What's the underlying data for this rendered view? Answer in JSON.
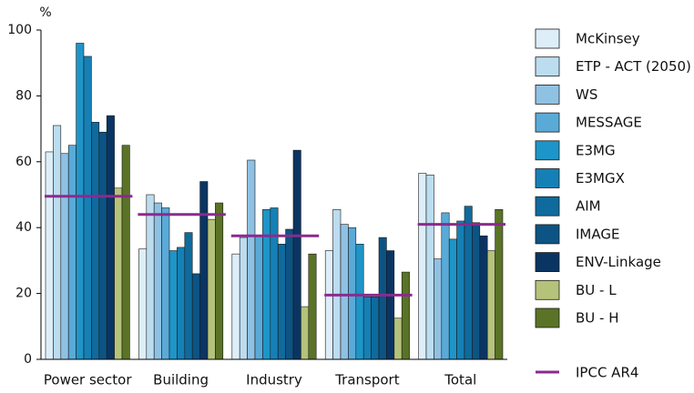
{
  "chart_data": {
    "type": "bar",
    "y_axis_label": "%",
    "categories": [
      "Power sector",
      "Building",
      "Industry",
      "Transport",
      "Total"
    ],
    "series": [
      {
        "name": "McKinsey",
        "color": "#ddeef8",
        "values": [
          63,
          33.5,
          32,
          33,
          56.5
        ]
      },
      {
        "name": "ETP - ACT (2050)",
        "color": "#bcdcf0",
        "values": [
          71,
          50,
          37,
          45.5,
          56
        ]
      },
      {
        "name": "WS",
        "color": "#8fc1e3",
        "values": [
          62.5,
          47.5,
          60.5,
          41,
          30.5
        ]
      },
      {
        "name": "MESSAGE",
        "color": "#5aaad8",
        "values": [
          65,
          46,
          37.5,
          40,
          44.5
        ]
      },
      {
        "name": "E3MG",
        "color": "#1e95c8",
        "values": [
          96,
          33,
          45.5,
          35,
          36.5
        ]
      },
      {
        "name": "E3MGX",
        "color": "#1580b5",
        "values": [
          92,
          34,
          46,
          19,
          42
        ]
      },
      {
        "name": "AIM",
        "color": "#0f6a9d",
        "values": [
          72,
          38.5,
          35,
          19,
          46.5
        ]
      },
      {
        "name": "IMAGE",
        "color": "#0c5484",
        "values": [
          69,
          26,
          39.5,
          37,
          41.5
        ]
      },
      {
        "name": "ENV-Linkage",
        "color": "#0a3563",
        "values": [
          74,
          54,
          63.5,
          33,
          37.5
        ]
      },
      {
        "name": "BU - L",
        "color": "#b5c27a",
        "values": [
          52,
          42.5,
          16,
          12.5,
          33
        ]
      },
      {
        "name": "BU - H",
        "color": "#5a7326",
        "values": [
          65,
          47.5,
          32,
          26.5,
          45.5
        ]
      }
    ],
    "reference": {
      "name": "IPCC AR4",
      "color": "#8b2a8f",
      "values": [
        49.5,
        44,
        37.5,
        19.5,
        41
      ]
    },
    "ylim": [
      0,
      100
    ],
    "yticks": [
      0,
      20,
      40,
      60,
      80,
      100
    ]
  }
}
